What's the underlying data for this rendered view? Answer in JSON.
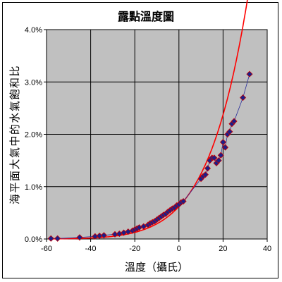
{
  "chart_data": {
    "type": "scatter",
    "title": "露點溫度圖",
    "xlabel": "溫度（攝氏）",
    "ylabel": "海平面大氣中的水氣飽和比",
    "xlim": [
      -60,
      40
    ],
    "ylim": [
      0,
      4.0
    ],
    "xticks": [
      "-60",
      "-40",
      "-20",
      "0",
      "20",
      "40"
    ],
    "yticks": [
      "0.0%",
      "1.0%",
      "2.0%",
      "3.0%",
      "4.0%"
    ],
    "grid": true,
    "background_color": "#c0c0c0",
    "marker_color": "#1a1f8a",
    "curve_color": "#ff0000",
    "series": [
      {
        "values_x": [
          -58,
          -55,
          -45,
          -38,
          -36,
          -34,
          -29,
          -27,
          -25,
          -23,
          -21,
          -20,
          -19,
          -18,
          -16,
          -14,
          -13,
          -12,
          -11,
          -10,
          -9,
          -8,
          -7,
          -6,
          -5,
          -4,
          -3,
          -2,
          -1,
          0,
          1,
          2,
          10,
          11,
          12,
          13,
          14,
          15,
          16,
          17,
          18,
          19,
          20,
          21,
          22,
          23,
          24,
          25,
          29,
          32
        ],
        "values_y": [
          0.01,
          0.01,
          0.03,
          0.05,
          0.06,
          0.07,
          0.09,
          0.1,
          0.12,
          0.14,
          0.16,
          0.18,
          0.2,
          0.22,
          0.24,
          0.27,
          0.3,
          0.32,
          0.34,
          0.37,
          0.4,
          0.43,
          0.46,
          0.48,
          0.52,
          0.55,
          0.58,
          0.6,
          0.64,
          0.66,
          0.7,
          0.72,
          1.15,
          1.2,
          1.23,
          1.35,
          1.5,
          1.55,
          1.55,
          1.45,
          1.5,
          1.6,
          1.85,
          1.75,
          2.0,
          2.05,
          2.2,
          2.25,
          2.7,
          3.15
        ]
      }
    ]
  }
}
